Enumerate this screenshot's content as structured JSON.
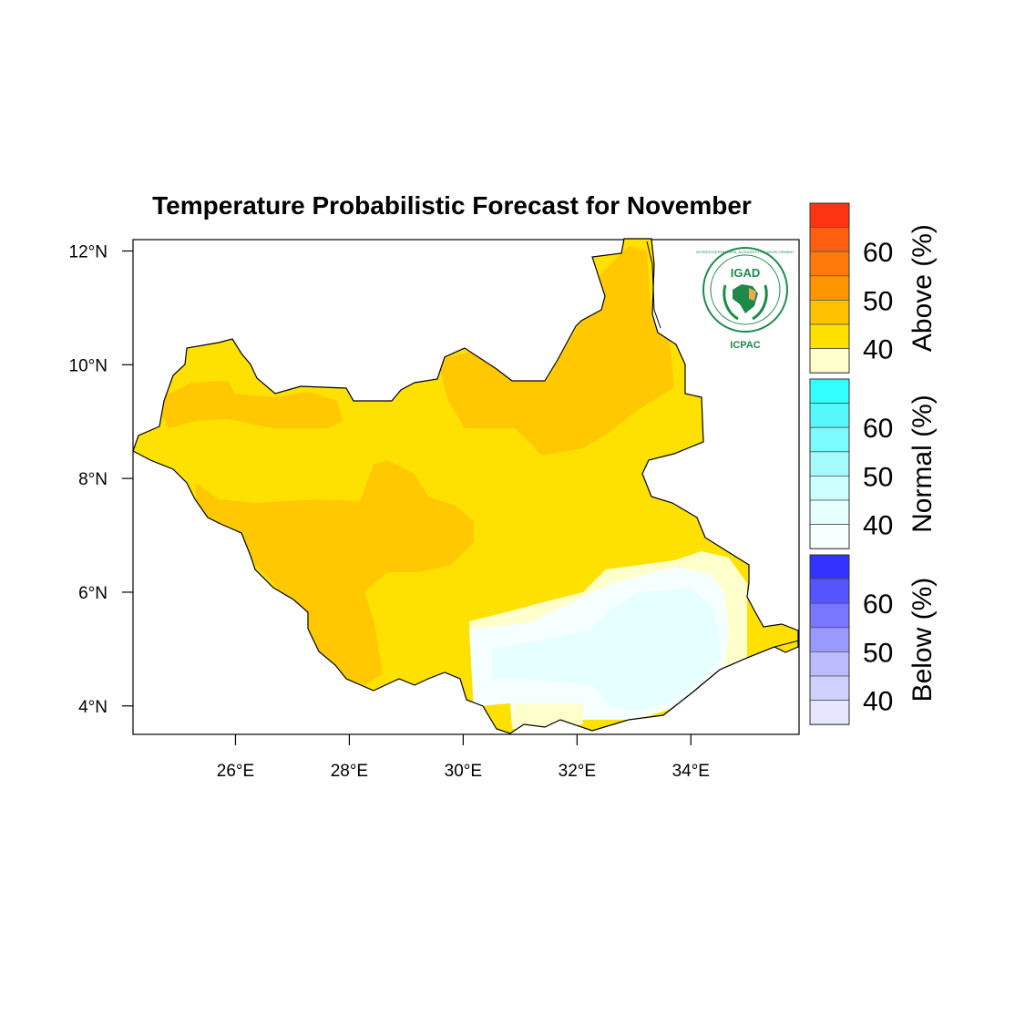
{
  "title": "Temperature Probabilistic Forecast for November",
  "map": {
    "region": "South Sudan",
    "lon_range": [
      24.2,
      35.9
    ],
    "lat_range": [
      3.5,
      12.2
    ],
    "y_ticks": [
      {
        "value": 12,
        "label": "12°N"
      },
      {
        "value": 10,
        "label": "10°N"
      },
      {
        "value": 8,
        "label": "8°N"
      },
      {
        "value": 6,
        "label": "6°N"
      },
      {
        "value": 4,
        "label": "4°N"
      }
    ],
    "x_ticks": [
      {
        "value": 26,
        "label": "26°E"
      },
      {
        "value": 28,
        "label": "28°E"
      },
      {
        "value": 30,
        "label": "30°E"
      },
      {
        "value": 32,
        "label": "32°E"
      },
      {
        "value": 34,
        "label": "34°E"
      }
    ]
  },
  "colors": {
    "above_40_45": "#ffe100",
    "above_45_50": "#ffc800",
    "normal_35_40": "#f5ffff",
    "normal_40_45": "#e6ffff",
    "above_light": "#ffffcc",
    "border": "#000000"
  },
  "logo": {
    "name": "IGAD",
    "caption": "ICPAC",
    "ring_text": "INTERGOVERNMENTAL AUTHORITY ON DEVELOPMENT"
  },
  "legend": {
    "above": {
      "title": "Above (%)",
      "labels": [
        "60",
        "50",
        "40"
      ],
      "colors": [
        "#ff3311",
        "#ff5f10",
        "#ff7a0a",
        "#ff9500",
        "#ffc200",
        "#ffe000",
        "#ffffcc"
      ]
    },
    "normal": {
      "title": "Normal (%)",
      "labels": [
        "60",
        "50",
        "40"
      ],
      "colors": [
        "#33ffff",
        "#55f8fb",
        "#7bfbfb",
        "#a5fbfb",
        "#ccffff",
        "#e6ffff",
        "#f8ffff"
      ]
    },
    "below": {
      "title": "Below (%)",
      "labels": [
        "60",
        "50",
        "40"
      ],
      "colors": [
        "#3333ff",
        "#5555ff",
        "#7777ff",
        "#9999ff",
        "#bbbbff",
        "#d0d0ff",
        "#e6e6ff"
      ]
    }
  }
}
